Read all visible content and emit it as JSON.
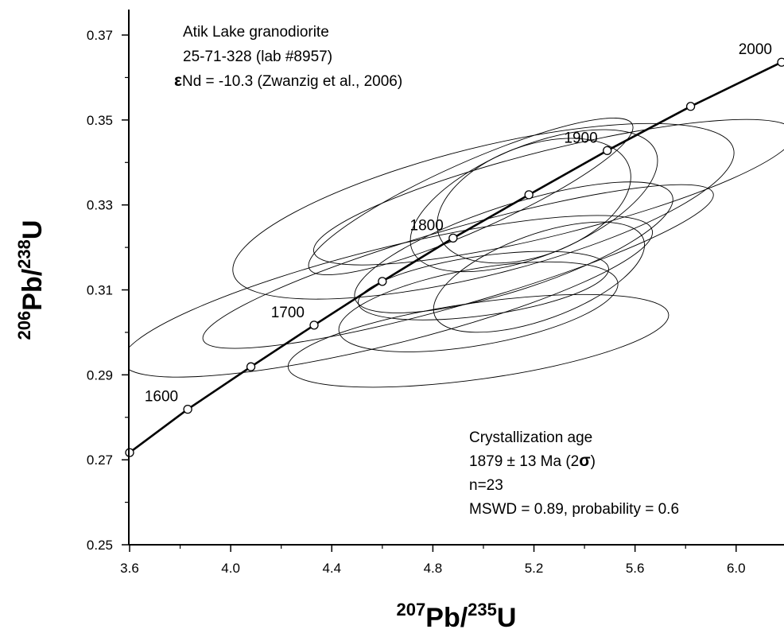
{
  "chart_data": {
    "type": "scatter",
    "subtype": "concordia diagram with error ellipses",
    "xlabel": {
      "sup1": "207",
      "base1": "Pb/",
      "sup2": "235",
      "base2": "U"
    },
    "ylabel": {
      "sup1": "206",
      "base1": "Pb/",
      "sup2": "238",
      "base2": "U"
    },
    "xlim": [
      3.6,
      6.18
    ],
    "ylim": [
      0.25,
      0.376
    ],
    "x_ticks": [
      "3.6",
      "4.0",
      "4.4",
      "4.8",
      "5.2",
      "5.6",
      "6.0"
    ],
    "y_ticks": [
      "0.25",
      "0.27",
      "0.29",
      "0.31",
      "0.33",
      "0.35",
      "0.37"
    ],
    "grid": false,
    "concordia": {
      "points": [
        {
          "x": 3.6,
          "y": 0.2717
        },
        {
          "x": 3.83,
          "y": 0.2819
        },
        {
          "x": 4.08,
          "y": 0.2919
        },
        {
          "x": 4.33,
          "y": 0.3017
        },
        {
          "x": 4.6,
          "y": 0.312
        },
        {
          "x": 4.88,
          "y": 0.3222
        },
        {
          "x": 5.18,
          "y": 0.3324
        },
        {
          "x": 5.49,
          "y": 0.3428
        },
        {
          "x": 5.82,
          "y": 0.3532
        },
        {
          "x": 6.18,
          "y": 0.3636
        }
      ],
      "age_labels": [
        {
          "text": "1600",
          "x": 3.83,
          "y": 0.2819
        },
        {
          "text": "1700",
          "x": 4.33,
          "y": 0.3017
        },
        {
          "text": "1800",
          "x": 4.88,
          "y": 0.3222
        },
        {
          "text": "1900",
          "x": 5.49,
          "y": 0.3428
        },
        {
          "text": "2000",
          "x": 6.18,
          "y": 0.3636
        }
      ]
    },
    "ellipses": [
      {
        "cx": 4.62,
        "cy": 0.3085,
        "rx": 1.08,
        "ry": 0.0113,
        "angle": 14
      },
      {
        "cx": 4.9,
        "cy": 0.3155,
        "rx": 1.05,
        "ry": 0.009,
        "angle": 16
      },
      {
        "cx": 5.0,
        "cy": 0.3285,
        "rx": 1.02,
        "ry": 0.015,
        "angle": 14
      },
      {
        "cx": 5.28,
        "cy": 0.333,
        "rx": 0.98,
        "ry": 0.01,
        "angle": 14
      },
      {
        "cx": 5.2,
        "cy": 0.331,
        "rx": 0.52,
        "ry": 0.013,
        "angle": 22
      },
      {
        "cx": 5.2,
        "cy": 0.331,
        "rx": 0.4,
        "ry": 0.013,
        "angle": 20
      },
      {
        "cx": 5.12,
        "cy": 0.32,
        "rx": 0.66,
        "ry": 0.01,
        "angle": 18
      },
      {
        "cx": 5.0,
        "cy": 0.311,
        "rx": 0.5,
        "ry": 0.007,
        "angle": 8
      },
      {
        "cx": 4.98,
        "cy": 0.306,
        "rx": 0.56,
        "ry": 0.009,
        "angle": 10
      },
      {
        "cx": 5.22,
        "cy": 0.313,
        "rx": 0.44,
        "ry": 0.01,
        "angle": 20
      },
      {
        "cx": 4.98,
        "cy": 0.298,
        "rx": 0.76,
        "ry": 0.009,
        "angle": 8
      },
      {
        "cx": 4.95,
        "cy": 0.332,
        "rx": 0.7,
        "ry": 0.008,
        "angle": 24
      }
    ],
    "annotations": {
      "sample_lines": [
        "Atik Lake granodiorite",
        "25-71-328 (lab #8957)"
      ],
      "epsilon_symbol": "ε",
      "epsilon_text": "Nd = -10.3 (Zwanzig et al., 2006)",
      "result_lines": [
        "Crystallization age",
        "1879 ± 13 Ma (2",
        "n=23",
        "MSWD = 0.89, probability = 0.6"
      ],
      "sigma_symbol": "σ",
      "sigma_close": ")"
    }
  }
}
